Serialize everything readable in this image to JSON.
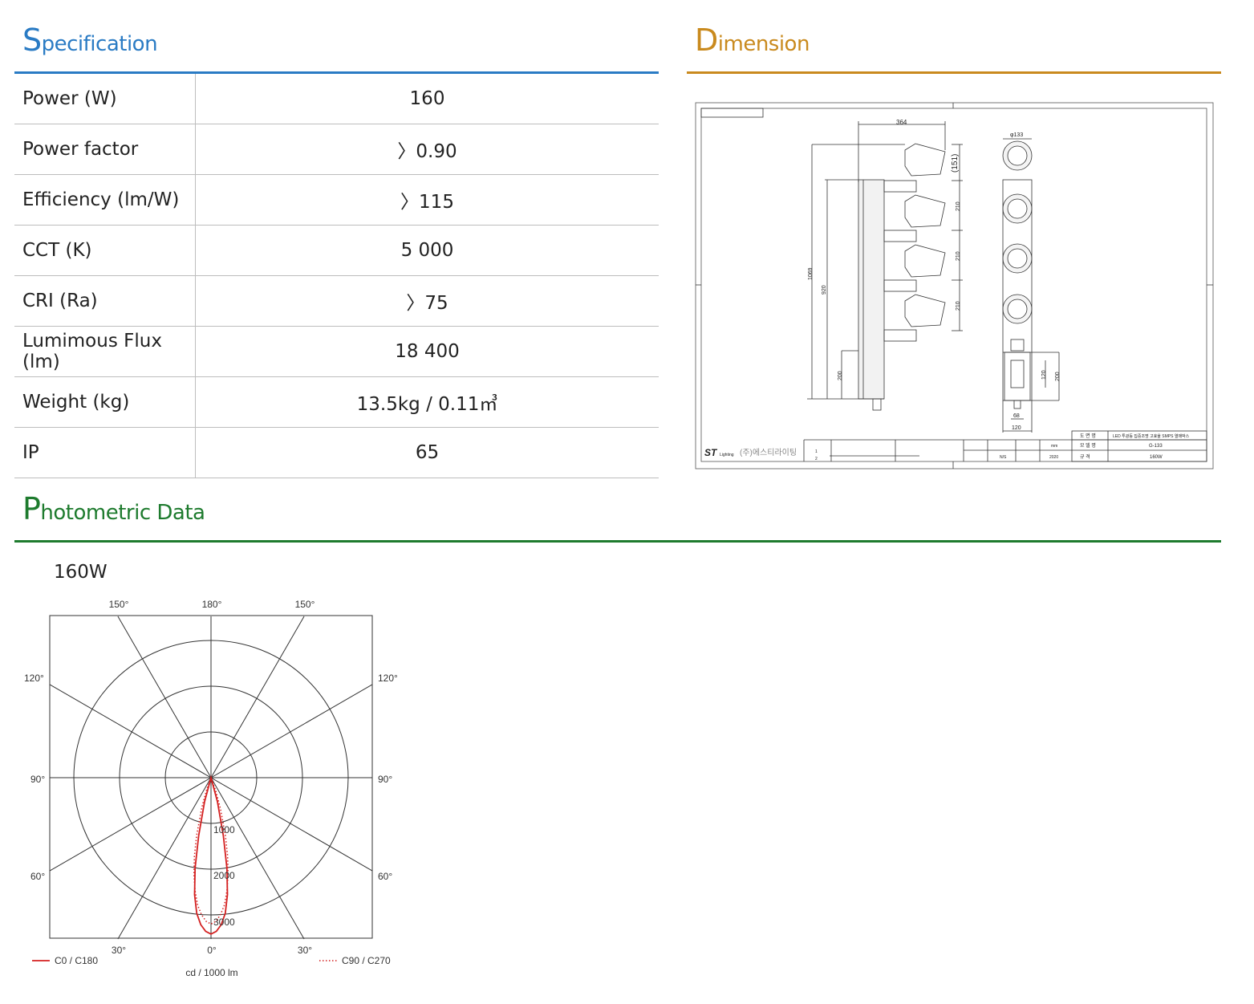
{
  "specification": {
    "title_cap": "S",
    "title_rest": "pecification",
    "color": "#2a7bc4",
    "rows": [
      {
        "label": "Power (W)",
        "value": "160"
      },
      {
        "label": "Power factor",
        "value": "〉0.90"
      },
      {
        "label": "Efficiency (lm/W)",
        "value": "〉115"
      },
      {
        "label": "CCT (K)",
        "value": "5 000"
      },
      {
        "label": "CRI (Ra)",
        "value": "〉75"
      },
      {
        "label": "Lumimous Flux (lm)",
        "value": "18 400"
      },
      {
        "label": "Weight (kg)",
        "value": "13.5kg / 0.11㎥"
      },
      {
        "label": "IP",
        "value": "65"
      }
    ]
  },
  "dimension": {
    "title_cap": "D",
    "title_rest": "imension",
    "color": "#c98a1e",
    "drawing": {
      "d_width": "364",
      "d_151": "(151)",
      "d_210a": "210",
      "d_210b": "210",
      "d_210c": "210",
      "d_1069": "1069",
      "d_920": "920",
      "d_200_left": "200",
      "d_phi133": "φ133",
      "d_120_v": "120",
      "d_200_right": "200",
      "d_68": "68",
      "d_120_h": "120",
      "tb_logo": "ST",
      "tb_logo_sub": "Lighting",
      "tb_company": "(주)에스티라이팅",
      "tb_drawing_name_label": "도 면 명",
      "tb_drawing_name": "LED 투광등 집중조명 고효율 SMPS 열매박스",
      "tb_model_label": "모 델 명",
      "tb_model": "G-133",
      "tb_spec_label": "규    격",
      "tb_spec": "160W",
      "tb_scale": "N/S",
      "tb_unit": "mm",
      "tb_year": "2020",
      "tb_rev1": "1",
      "tb_rev2": "2"
    }
  },
  "photometric": {
    "title_cap": "P",
    "title_rest": "hotometric Data",
    "color": "#1e7b2e",
    "subtitle": "160W",
    "chart_data": {
      "type": "polar",
      "unit_label": "cd / 1000 lm",
      "radial_ticks": [
        "1000",
        "2000",
        "3000"
      ],
      "radial_max": 3500,
      "angle_labels_top": [
        "150°",
        "180°",
        "150°"
      ],
      "angle_labels_side": [
        "120°",
        "90°",
        "60°"
      ],
      "angle_labels_bottom": [
        "30°",
        "0°",
        "30°"
      ],
      "series": [
        {
          "name": "C0 / C180",
          "color": "#d42020",
          "style": "solid",
          "angles_deg": [
            0,
            2,
            4,
            6,
            8,
            10,
            12,
            15,
            20
          ],
          "values": [
            3420,
            3360,
            3220,
            2980,
            2580,
            2000,
            1300,
            550,
            0
          ]
        },
        {
          "name": "C90 / C270",
          "color": "#d42020",
          "style": "dotted",
          "angles_deg": [
            0,
            2,
            4,
            6,
            8,
            10,
            12,
            14,
            17,
            20,
            24
          ],
          "values": [
            3200,
            3140,
            3000,
            2800,
            2500,
            2150,
            1750,
            1300,
            700,
            300,
            0
          ]
        }
      ]
    }
  }
}
